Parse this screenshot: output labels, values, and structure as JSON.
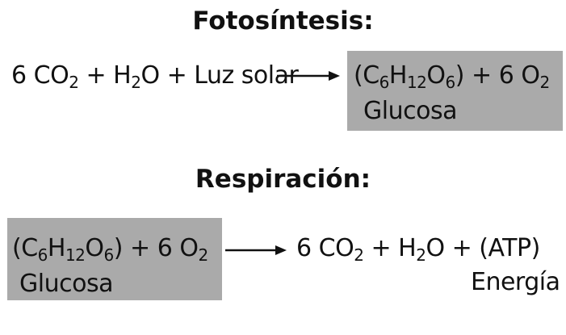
{
  "photosynthesis": {
    "heading": "Fotosíntesis:",
    "reactants": [
      {
        "coef": "6 ",
        "a": "CO",
        "sub": "2"
      },
      {
        "text": " + "
      },
      {
        "a": "H",
        "sub": "2",
        "b": "O"
      },
      {
        "text": " + Luz solar"
      }
    ],
    "products": {
      "glucose_open": "(C",
      "glucose_c_sub": "6",
      "glucose_h": "H",
      "glucose_h_sub": "12",
      "glucose_o": "O",
      "glucose_o_sub": "6",
      "glucose_close": ")",
      "plus": " + 6 ",
      "oxygen": "O",
      "oxygen_sub": "2"
    },
    "product_label": "Glucosa"
  },
  "respiration": {
    "heading": "Respiración:",
    "reactants": {
      "glucose_open": "(C",
      "glucose_c_sub": "6",
      "glucose_h": "H",
      "glucose_h_sub": "12",
      "glucose_o": "O",
      "glucose_o_sub": "6",
      "glucose_close": ")",
      "plus": " + 6 ",
      "oxygen": "O",
      "oxygen_sub": "2"
    },
    "reactant_label": "Glucosa",
    "products": {
      "co2_coef": "6 ",
      "co2": "CO",
      "co2_sub": "2",
      "plus1": " + ",
      "water_h": "H",
      "water_sub": "2",
      "water_o": "O",
      "plus2": " + ",
      "atp": "(ATP)"
    },
    "energy_label": "Energía"
  },
  "colors": {
    "box_fill": "#aaaaaa",
    "text": "#111111"
  }
}
